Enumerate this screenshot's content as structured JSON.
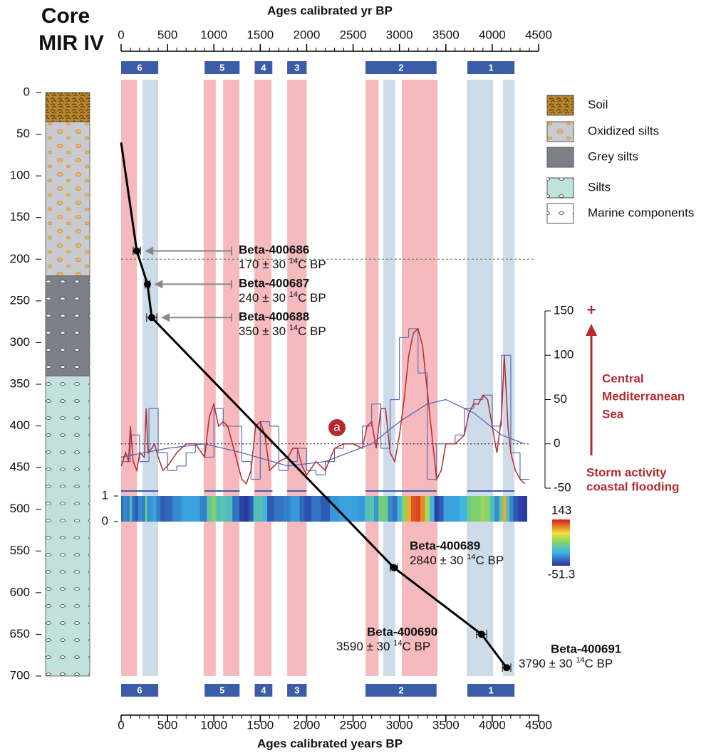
{
  "title": [
    "Core",
    "MIR IV"
  ],
  "chart_data": {
    "type": "line",
    "xlabel_top": "Ages calibrated yr BP",
    "xlabel": "Ages calibrated years BP",
    "xlim": [
      0,
      4500
    ],
    "xticks": [
      0,
      500,
      1000,
      1500,
      2000,
      2500,
      3000,
      3500,
      4000,
      4500
    ],
    "ylim": [
      0,
      700
    ],
    "yticks": [
      0,
      50,
      100,
      150,
      200,
      250,
      300,
      350,
      400,
      450,
      500,
      550,
      600,
      650,
      700
    ],
    "color": "#000000",
    "x": [
      0,
      169,
      284,
      330,
      2940,
      3885,
      4155
    ],
    "values": [
      60,
      190,
      230,
      270,
      570,
      650,
      690
    ],
    "xerr": [
      null,
      40,
      25,
      55,
      40,
      55,
      45
    ],
    "hline": 200,
    "dates": [
      {
        "name": "Beta-400686",
        "age": "170 ± 30 ",
        "iso": "14",
        "unit": "C BP"
      },
      {
        "name": "Beta-400687",
        "age": "240 ± 30 ",
        "iso": "14",
        "unit": "C BP"
      },
      {
        "name": "Beta-400688",
        "age": "350 ± 30 ",
        "iso": "14",
        "unit": "C BP"
      },
      {
        "name": "Beta-400689",
        "age": "2840 ± 30 ",
        "iso": "14",
        "unit": "C BP"
      },
      {
        "name": "Beta-400690",
        "age": "3590 ± 30 ",
        "iso": "14",
        "unit": "C BP"
      },
      {
        "name": "Beta-400691",
        "age": "3790 ± 30 ",
        "iso": "14",
        "unit": "C BP"
      }
    ],
    "events": [
      {
        "label": "6",
        "range": [
          0,
          400
        ]
      },
      {
        "label": "5",
        "range": [
          900,
          1277
        ]
      },
      {
        "label": "4",
        "range": [
          1440,
          1630
        ]
      },
      {
        "label": "3",
        "range": [
          1790,
          2000
        ]
      },
      {
        "label": "2",
        "range": [
          2634,
          3400
        ]
      },
      {
        "label": "1",
        "range": [
          3732,
          4240
        ]
      }
    ],
    "event_color": "#3b5ca8",
    "bands": [
      {
        "color": "#f5adb2",
        "range": [
          0,
          170
        ]
      },
      {
        "color": "#c6d6e6",
        "range": [
          230,
          400
        ]
      },
      {
        "color": "#f5adb2",
        "range": [
          890,
          1020
        ]
      },
      {
        "color": "#f5adb2",
        "range": [
          1100,
          1275
        ]
      },
      {
        "color": "#f5adb2",
        "range": [
          1435,
          1620
        ]
      },
      {
        "color": "#f5adb2",
        "range": [
          1790,
          2000
        ]
      },
      {
        "color": "#f5adb2",
        "range": [
          2635,
          2775
        ]
      },
      {
        "color": "#c6d6e6",
        "range": [
          2825,
          2955
        ]
      },
      {
        "color": "#f5adb2",
        "range": [
          3025,
          3410
        ]
      },
      {
        "color": "#c6d6e6",
        "range": [
          3725,
          4010
        ]
      },
      {
        "color": "#c6d6e6",
        "range": [
          4115,
          4240
        ]
      }
    ],
    "lithology": [
      {
        "name": "Soil",
        "color": "#b8862a",
        "range": [
          0,
          35
        ]
      },
      {
        "name": "Oxidized silts",
        "color": "#c9cbcf",
        "range": [
          35,
          220
        ]
      },
      {
        "name": "Grey silts",
        "color": "#7d8088",
        "range": [
          220,
          340
        ]
      },
      {
        "name": "Silts",
        "color": "#bfe3dc",
        "range": [
          340,
          700
        ]
      }
    ],
    "marine_label": "Marine components",
    "storm": {
      "y2lim": [
        -50,
        150
      ],
      "y2ticks": [
        -50,
        0,
        50,
        100,
        150
      ],
      "series": [
        {
          "color": "#5a6fb5",
          "x": [
            0,
            100,
            200,
            300,
            400,
            500,
            600,
            700,
            800,
            900,
            1000,
            1100,
            1200,
            1300,
            1400,
            1500,
            1600,
            1700,
            1800,
            1900,
            2000,
            2100,
            2200,
            2300,
            2400,
            2500,
            2600,
            2700,
            2800,
            2900,
            3000,
            3100,
            3200,
            3300,
            3400,
            3500,
            3600,
            3700,
            3800,
            3900,
            4000,
            4100,
            4200,
            4300
          ],
          "values": [
            -20,
            10,
            -20,
            40,
            -10,
            -30,
            -25,
            -10,
            0,
            -15,
            40,
            20,
            20,
            -20,
            -40,
            25,
            20,
            -30,
            -20,
            -5,
            -30,
            -35,
            -20,
            -5,
            0,
            0,
            20,
            45,
            -5,
            50,
            120,
            130,
            80,
            -40,
            0,
            0,
            10,
            40,
            50,
            55,
            20,
            100,
            -10,
            -40
          ]
        },
        {
          "color": "#b52a2e",
          "x": [
            0,
            50,
            80,
            100,
            130,
            170,
            200,
            250,
            270,
            290,
            330,
            360,
            400,
            450,
            500,
            600,
            700,
            800,
            900,
            950,
            1000,
            1050,
            1100,
            1150,
            1250,
            1300,
            1350,
            1400,
            1450,
            1500,
            1550,
            1600,
            1700,
            1800,
            1850,
            1900,
            1950,
            2000,
            2100,
            2200,
            2300,
            2400,
            2500,
            2600,
            2650,
            2700,
            2750,
            2800,
            2850,
            2900,
            2950,
            3000,
            3050,
            3100,
            3150,
            3200,
            3250,
            3300,
            3350,
            3400,
            3450,
            3500,
            3600,
            3700,
            3750,
            3800,
            3850,
            3900,
            3950,
            4000,
            4050,
            4100,
            4130,
            4170,
            4200,
            4250,
            4300,
            4350
          ],
          "values": [
            -25,
            -10,
            -20,
            20,
            -20,
            -30,
            -10,
            -15,
            40,
            -10,
            -5,
            0,
            -15,
            -30,
            -25,
            -10,
            0,
            0,
            -15,
            30,
            45,
            20,
            25,
            20,
            -20,
            -40,
            -45,
            -30,
            20,
            25,
            10,
            -30,
            -20,
            -15,
            -5,
            -5,
            -25,
            -35,
            -20,
            -30,
            -5,
            0,
            0,
            -5,
            20,
            25,
            -5,
            40,
            40,
            -10,
            -20,
            10,
            50,
            100,
            125,
            130,
            110,
            60,
            10,
            -40,
            -30,
            0,
            0,
            10,
            35,
            45,
            45,
            55,
            50,
            20,
            -10,
            30,
            100,
            20,
            -10,
            -30,
            -40,
            -45
          ]
        },
        {
          "color": "#4a62b0",
          "x": [
            0,
            500,
            900,
            1300,
            1800,
            2200,
            2700,
            3000,
            3300,
            3500,
            3800,
            4100,
            4350
          ],
          "values": [
            -15,
            -5,
            0,
            -10,
            -25,
            -20,
            0,
            25,
            45,
            50,
            35,
            10,
            0
          ]
        }
      ],
      "heatmap_yticks": [
        0,
        1
      ],
      "clim": [
        -51.3,
        143
      ],
      "label_top": [
        "Central",
        "Mediterranean",
        "Sea"
      ],
      "label_bottom": [
        "Storm activity",
        "coastal flooding"
      ],
      "plus": "+",
      "marker": "a"
    }
  }
}
